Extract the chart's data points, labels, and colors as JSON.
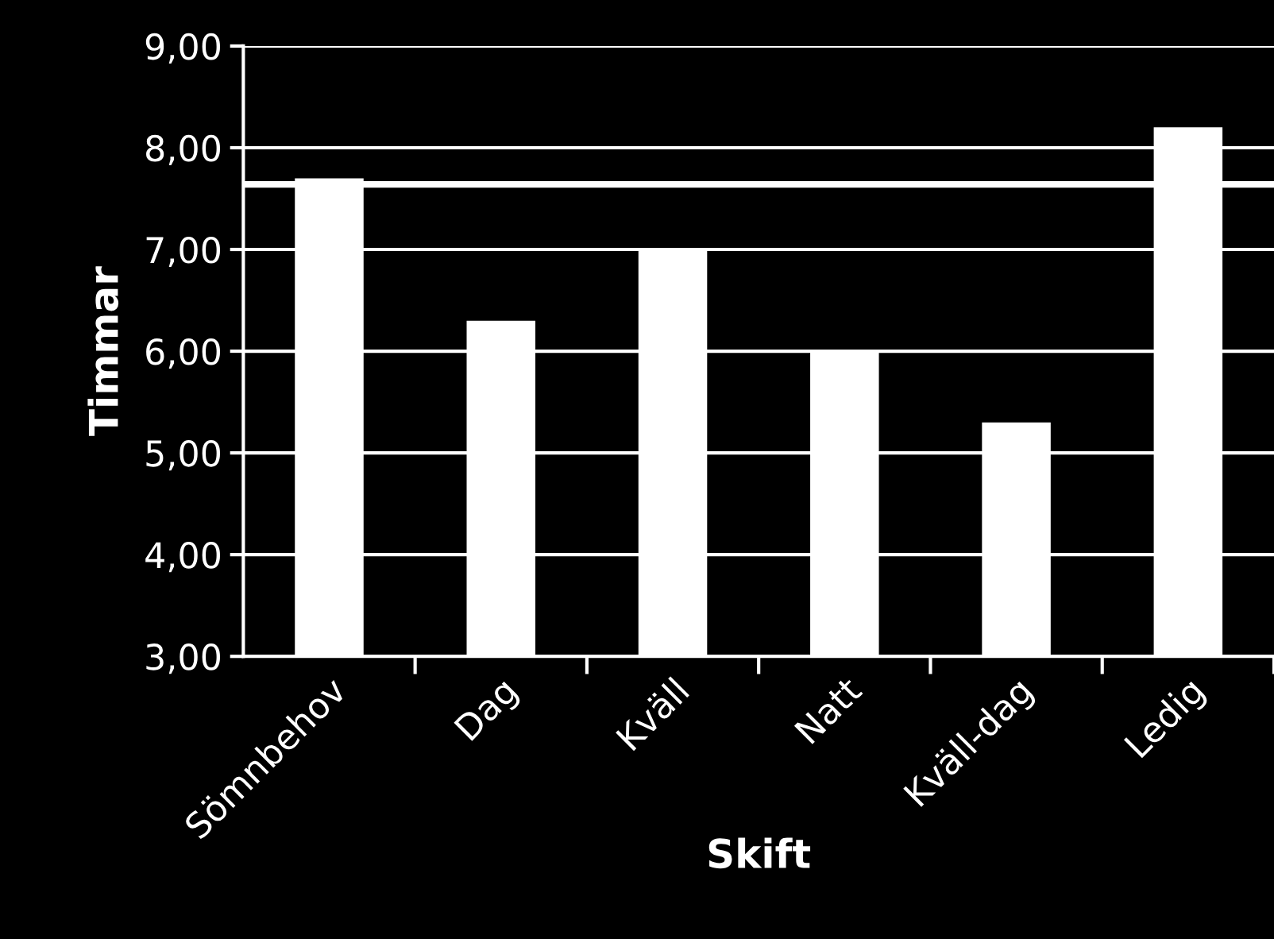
{
  "chart_data": {
    "type": "bar",
    "xlabel": "Skift",
    "ylabel": "Timmar",
    "categories": [
      "Sömnbehov",
      "Dag",
      "Kväll",
      "Natt",
      "Kväll-dag",
      "Ledig"
    ],
    "values": [
      7.7,
      6.3,
      7.0,
      6.0,
      5.3,
      8.2
    ],
    "color": "#ffffff",
    "ylim": [
      3,
      9
    ],
    "yticks": [
      {
        "value": 3,
        "label": "3,00"
      },
      {
        "value": 4,
        "label": "4,00"
      },
      {
        "value": 5,
        "label": "5,00"
      },
      {
        "value": 6,
        "label": "6,00"
      },
      {
        "value": 7,
        "label": "7,00"
      },
      {
        "value": 8,
        "label": "8,00"
      },
      {
        "value": 9,
        "label": "9,00"
      }
    ],
    "grid": "y",
    "ref_lines": [
      {
        "axis": "y",
        "value": 7.64,
        "label": null,
        "color": "#ffffff"
      }
    ]
  }
}
